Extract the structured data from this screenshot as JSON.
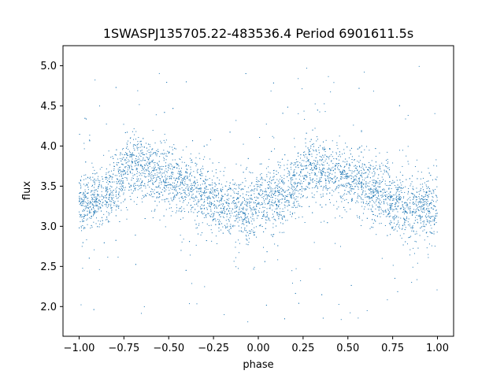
{
  "chart_data": {
    "type": "scatter",
    "title": "1SWASPJ135705.22-483536.4 Period 6901611.5s",
    "xlabel": "phase",
    "ylabel": "flux",
    "xlim": [
      -1.09,
      1.09
    ],
    "ylim": [
      1.63,
      5.25
    ],
    "xticks": [
      -1.0,
      -0.75,
      -0.5,
      -0.25,
      0.0,
      0.25,
      0.5,
      0.75,
      1.0
    ],
    "xtick_labels": [
      "−1.00",
      "−0.75",
      "−0.50",
      "−0.25",
      "0.00",
      "0.25",
      "0.50",
      "0.75",
      "1.00"
    ],
    "yticks": [
      2.0,
      2.5,
      3.0,
      3.5,
      4.0,
      4.5,
      5.0
    ],
    "ytick_labels": [
      "2.0",
      "2.5",
      "3.0",
      "3.5",
      "4.0",
      "4.5",
      "5.0"
    ],
    "grid": false,
    "marker_color": "#1f77b4",
    "trend": {
      "phase": [
        0.0,
        0.05,
        0.1,
        0.15,
        0.2,
        0.25,
        0.3,
        0.35,
        0.4,
        0.45,
        0.5,
        0.55,
        0.6,
        0.65,
        0.7,
        0.75,
        0.8,
        0.85,
        0.9,
        0.95,
        1.0
      ],
      "flux": [
        3.25,
        3.3,
        3.35,
        3.4,
        3.45,
        3.7,
        3.78,
        3.72,
        3.68,
        3.62,
        3.6,
        3.55,
        3.5,
        3.45,
        3.4,
        3.3,
        3.25,
        3.22,
        3.22,
        3.23,
        3.25
      ]
    },
    "scatter_sd": 0.18,
    "outlier_range": [
      1.8,
      5.0
    ]
  }
}
